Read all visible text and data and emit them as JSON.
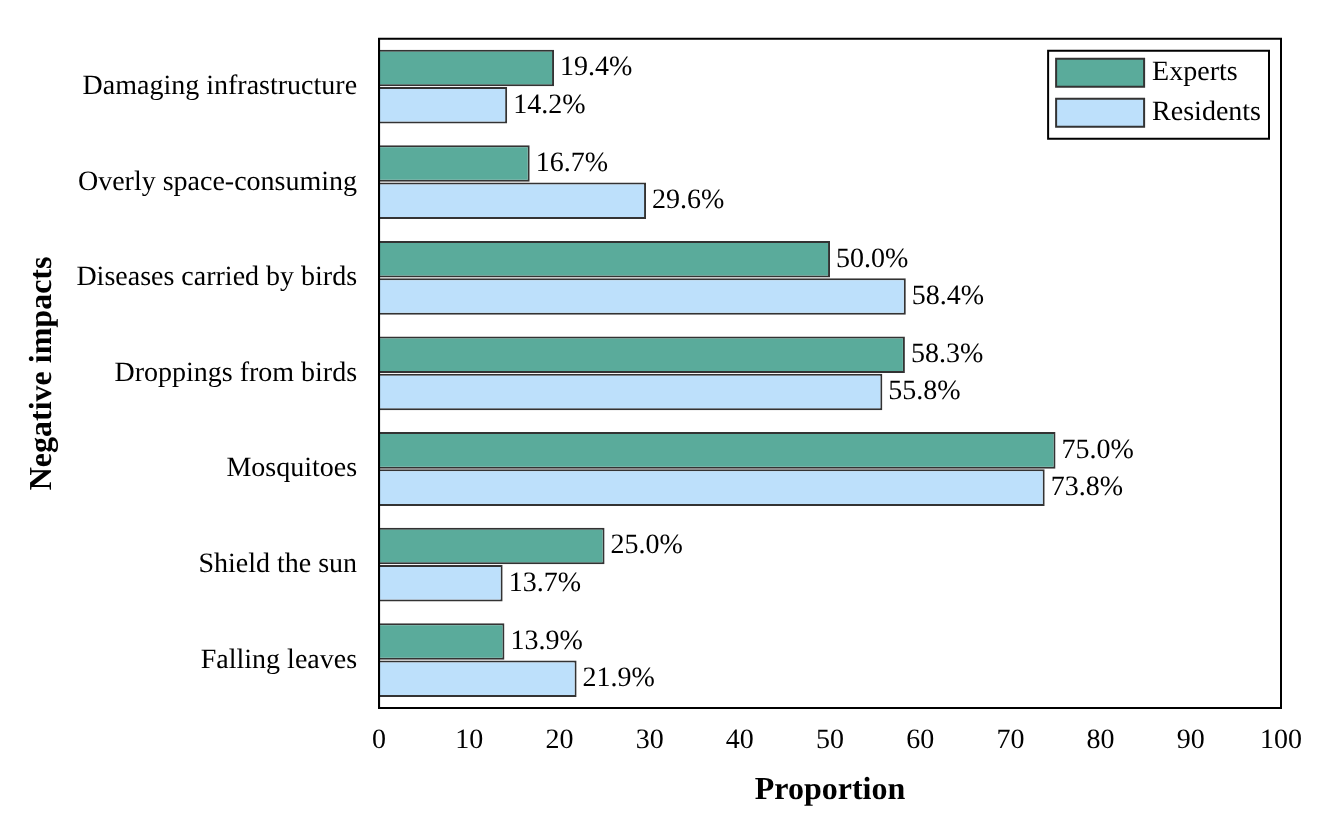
{
  "chart_data": {
    "type": "bar",
    "orientation": "horizontal",
    "xlabel": "Proportion",
    "ylabel": "Negative impacts",
    "categories": [
      "Damaging infrastructure",
      "Overly space-consuming",
      "Diseases carried by birds",
      "Droppings from birds",
      "Mosquitoes",
      "Shield the sun",
      "Falling leaves"
    ],
    "series": [
      {
        "name": "Experts",
        "color": "#5aab9b",
        "values": [
          19.4,
          16.7,
          50.0,
          58.3,
          75.0,
          25.0,
          13.9
        ],
        "value_labels": [
          "19.4%",
          "16.7%",
          "50.0%",
          "58.3%",
          "75.0%",
          "25.0%",
          "13.9%"
        ]
      },
      {
        "name": "Residents",
        "color": "#bde0fb",
        "values": [
          14.2,
          29.6,
          58.4,
          55.8,
          73.8,
          13.7,
          21.9
        ],
        "value_labels": [
          "14.2%",
          "29.6%",
          "58.4%",
          "55.8%",
          "73.8%",
          "13.7%",
          "21.9%"
        ]
      }
    ],
    "xlim": [
      0,
      100
    ],
    "xticks": [
      0,
      10,
      20,
      30,
      40,
      50,
      60,
      70,
      80,
      90,
      100
    ],
    "grid": false,
    "legend": "top right"
  }
}
